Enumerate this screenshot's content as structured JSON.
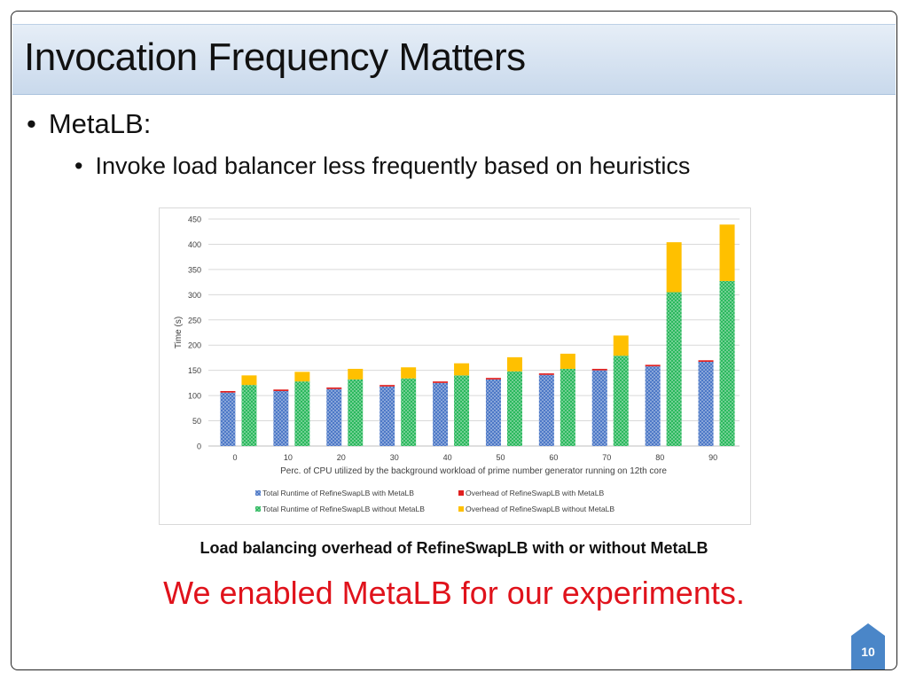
{
  "slide": {
    "title": "Invocation Frequency Matters",
    "bullet_1": "MetaLB:",
    "bullet_2": "Invoke load balancer less frequently based on heuristics",
    "caption": "Load balancing overhead of RefineSwapLB with or without MetaLB",
    "takeaway": "We enabled MetaLB for our experiments.",
    "page_number": "10",
    "bullet_symbol": "•"
  },
  "colors": {
    "title_text": "#111111",
    "takeaway_text": "#e0121b",
    "runtime_with_metalb": "#4472c4",
    "overhead_with_metalb": "#e02020",
    "runtime_without_metalb": "#21b556",
    "overhead_without_metalb": "#ffc000",
    "badge": "#4a86c8"
  },
  "chart_data": {
    "type": "bar",
    "stacked": true,
    "grouped": true,
    "xlabel": "Perc. of CPU utilized by the background workload of prime number generator running on 12th core",
    "ylabel": "Time (s)",
    "ylim": [
      0,
      450
    ],
    "yticks": [
      0,
      50,
      100,
      150,
      200,
      250,
      300,
      350,
      400,
      450
    ],
    "grid": true,
    "legend_position": "bottom",
    "categories": [
      "0",
      "10",
      "20",
      "30",
      "40",
      "50",
      "60",
      "70",
      "80",
      "90"
    ],
    "series": [
      {
        "name": "Total Runtime of RefineSwapLB with MetaLB",
        "group": "with",
        "color": "#4472c4",
        "pattern": true,
        "values": [
          106,
          109,
          113,
          118,
          125,
          132,
          141,
          150,
          158,
          167
        ]
      },
      {
        "name": "Overhead of RefineSwapLB with MetaLB",
        "group": "with",
        "color": "#e02020",
        "values": [
          3,
          3,
          3,
          3,
          3,
          3,
          3,
          3,
          3,
          3
        ]
      },
      {
        "name": "Total Runtime of RefineSwapLB without MetaLB",
        "group": "without",
        "color": "#21b556",
        "pattern": true,
        "values": [
          121,
          128,
          132,
          134,
          140,
          148,
          153,
          179,
          305,
          327
        ]
      },
      {
        "name": "Overhead of RefineSwapLB without MetaLB",
        "group": "without",
        "color": "#ffc000",
        "values": [
          19,
          19,
          21,
          22,
          24,
          28,
          30,
          40,
          99,
          112
        ]
      }
    ]
  }
}
